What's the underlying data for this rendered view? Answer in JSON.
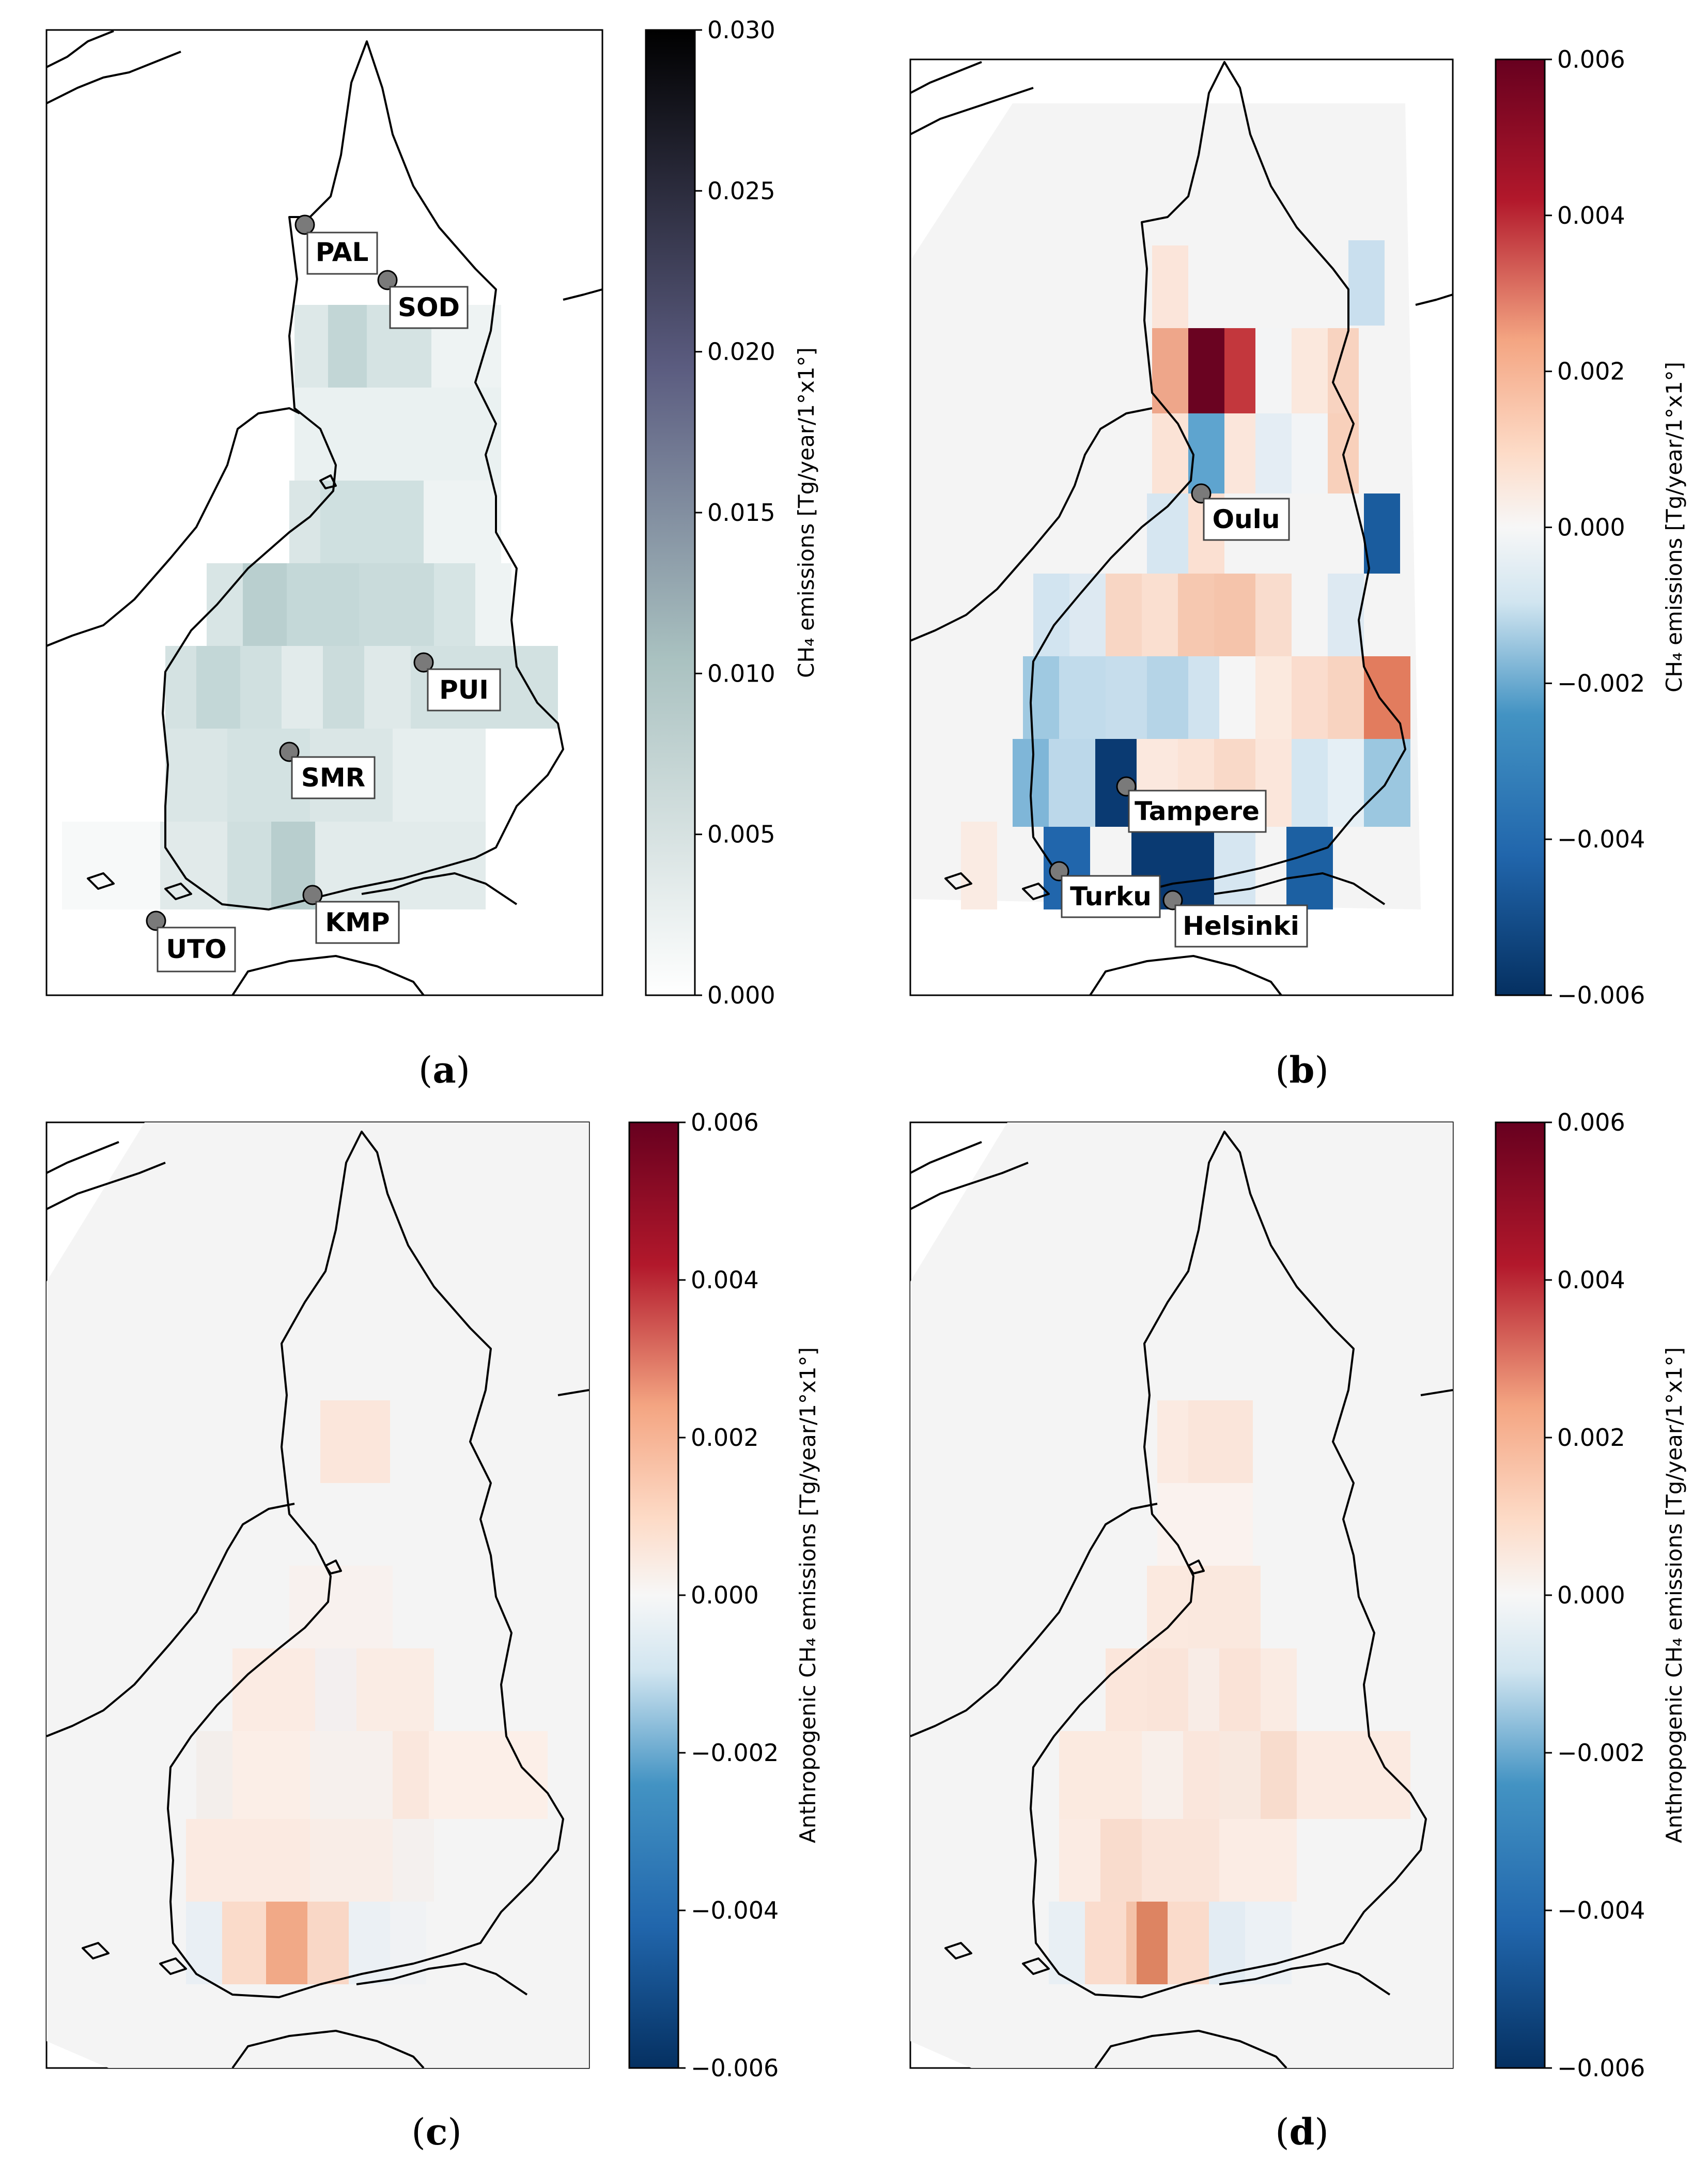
{
  "chart_data": [
    {
      "type": "heatmap",
      "panel_label": "(a)",
      "label_letter": "a",
      "colorbar": {
        "title": "CH₄ emissions [Tg/year/1°x1°]",
        "range": [
          0.0,
          0.03
        ],
        "ticks": [
          "0.000",
          "0.005",
          "0.010",
          "0.015",
          "0.020",
          "0.025",
          "0.030"
        ],
        "colors": [
          "#ffffff",
          "#6a8d8d",
          "#000000"
        ]
      },
      "stations": [
        {
          "name": "PAL"
        },
        {
          "name": "SOD"
        },
        {
          "name": "PUI"
        },
        {
          "name": "SMR"
        },
        {
          "name": "KMP"
        },
        {
          "name": "UTO"
        }
      ]
    },
    {
      "type": "heatmap",
      "panel_label": "(b)",
      "label_letter": "b",
      "colorbar": {
        "title": "CH₄ emissions [Tg/year/1°x1°]",
        "range": [
          -0.006,
          0.006
        ],
        "ticks": [
          "−0.006",
          "−0.004",
          "−0.002",
          "0.000",
          "0.002",
          "0.004",
          "0.006"
        ],
        "colors": [
          "#053061",
          "#f7f7f7",
          "#67001f"
        ]
      },
      "stations": [
        {
          "name": "Oulu"
        },
        {
          "name": "Tampere"
        },
        {
          "name": "Turku"
        },
        {
          "name": "Helsinki"
        }
      ]
    },
    {
      "type": "heatmap",
      "panel_label": "(c)",
      "label_letter": "c",
      "colorbar": {
        "title": "Anthropogenic CH₄ emissions [Tg/year/1°x1°]",
        "range": [
          -0.006,
          0.006
        ],
        "ticks": [
          "−0.006",
          "−0.004",
          "−0.002",
          "0.000",
          "0.002",
          "0.004",
          "0.006"
        ],
        "colors": [
          "#053061",
          "#f7f7f7",
          "#67001f"
        ]
      },
      "stations": []
    },
    {
      "type": "heatmap",
      "panel_label": "(d)",
      "label_letter": "d",
      "colorbar": {
        "title": "Anthropogenic CH₄ emissions [Tg/year/1°x1°]",
        "range": [
          -0.006,
          0.006
        ],
        "ticks": [
          "−0.006",
          "−0.004",
          "−0.002",
          "0.000",
          "0.002",
          "0.004",
          "0.006"
        ],
        "colors": [
          "#053061",
          "#f7f7f7",
          "#67001f"
        ]
      },
      "stations": []
    }
  ]
}
